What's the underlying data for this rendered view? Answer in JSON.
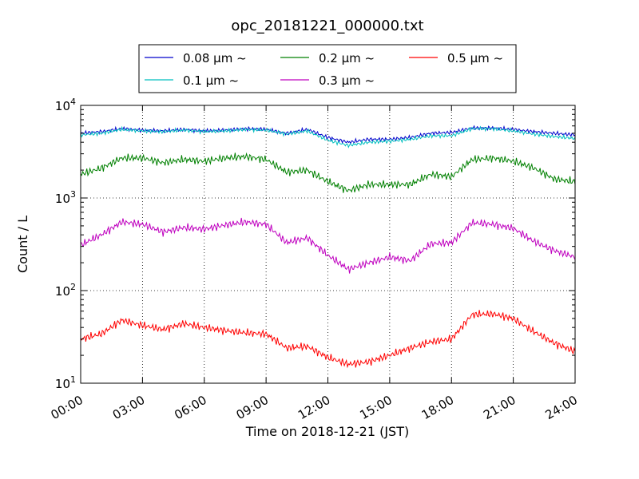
{
  "chart_data": {
    "type": "line",
    "title": "opc_20181221_000000.txt",
    "xlabel": "Time on 2018-12-21 (JST)",
    "ylabel": "Count / L",
    "y_scale": "log",
    "grid": true,
    "legend_position": "top",
    "x_ticks": [
      "00:00",
      "03:00",
      "06:00",
      "09:00",
      "12:00",
      "15:00",
      "18:00",
      "21:00",
      "24:00"
    ],
    "x_tick_hours": [
      0,
      3,
      6,
      9,
      12,
      15,
      18,
      21,
      24
    ],
    "xlim_hours": [
      0,
      24
    ],
    "ylim": [
      10,
      10000
    ],
    "y_ticks": [
      {
        "value": 10,
        "base": "10",
        "exp": "1"
      },
      {
        "value": 100,
        "base": "10",
        "exp": "2"
      },
      {
        "value": 1000,
        "base": "10",
        "exp": "3"
      },
      {
        "value": 10000,
        "base": "10",
        "exp": "4"
      }
    ],
    "x": [
      0,
      1,
      2,
      3,
      4,
      5,
      6,
      7,
      8,
      9,
      10,
      11,
      12,
      13,
      14,
      15,
      16,
      17,
      18,
      19,
      20,
      21,
      22,
      23,
      24
    ],
    "series": [
      {
        "name": "0.08 μm ~",
        "color": "#0000cc",
        "values": [
          5000,
          5200,
          5600,
          5400,
          5300,
          5500,
          5300,
          5400,
          5600,
          5500,
          5000,
          5500,
          4500,
          4000,
          4300,
          4300,
          4500,
          5000,
          5100,
          5700,
          5700,
          5500,
          5200,
          5000,
          4800
        ]
      },
      {
        "name": "0.1 μm ~",
        "color": "#00bfbf",
        "values": [
          4800,
          5000,
          5500,
          5300,
          5200,
          5400,
          5200,
          5300,
          5500,
          5400,
          4900,
          5300,
          4200,
          3700,
          4000,
          4100,
          4300,
          4700,
          4700,
          5600,
          5600,
          5300,
          4900,
          4600,
          4400
        ]
      },
      {
        "name": "0.2 μm ~",
        "color": "#008000",
        "values": [
          1800,
          2100,
          2700,
          2700,
          2400,
          2600,
          2500,
          2700,
          2800,
          2600,
          1900,
          2000,
          1500,
          1200,
          1400,
          1400,
          1400,
          1800,
          1700,
          2600,
          2700,
          2500,
          2100,
          1600,
          1500
        ]
      },
      {
        "name": "0.3 μm ~",
        "color": "#bf00bf",
        "values": [
          310,
          400,
          550,
          520,
          430,
          480,
          460,
          510,
          550,
          520,
          330,
          370,
          240,
          170,
          200,
          230,
          210,
          320,
          330,
          540,
          520,
          470,
          340,
          270,
          230
        ]
      },
      {
        "name": "0.5 μm ~",
        "color": "#ff0000",
        "values": [
          30,
          34,
          48,
          42,
          38,
          44,
          40,
          37,
          35,
          34,
          24,
          25,
          19,
          16,
          17,
          20,
          24,
          28,
          30,
          55,
          56,
          50,
          36,
          27,
          22
        ]
      }
    ]
  }
}
